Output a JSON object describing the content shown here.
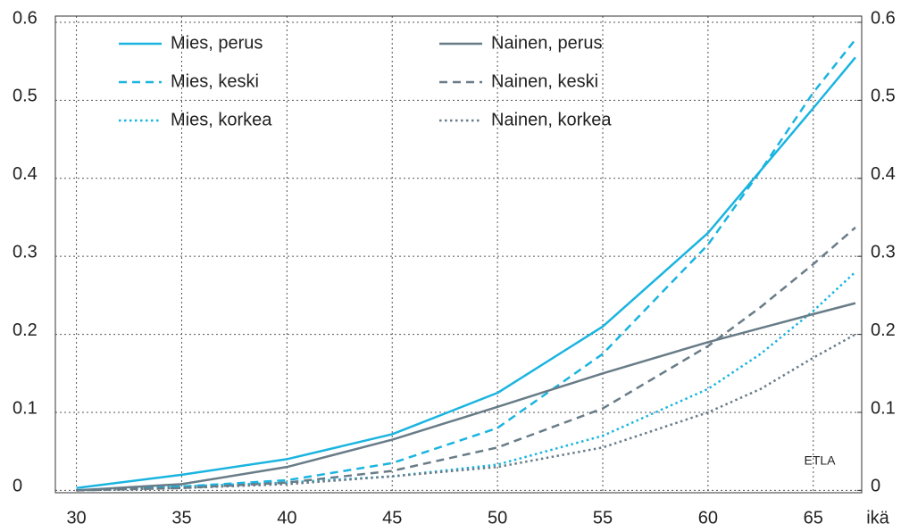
{
  "chart_data": {
    "type": "line",
    "x": [
      30,
      35,
      40,
      45,
      50,
      55,
      60,
      62.5,
      65,
      67
    ],
    "series": [
      {
        "name": "Mies, perus",
        "color": "#1ab4e0",
        "dash": "solid",
        "values": [
          0.003,
          0.02,
          0.04,
          0.072,
          0.125,
          0.21,
          0.33,
          0.41,
          0.49,
          0.555
        ]
      },
      {
        "name": "Mies, keski",
        "color": "#1ab4e0",
        "dash": "dashed",
        "values": [
          0,
          0.005,
          0.013,
          0.035,
          0.08,
          0.175,
          0.315,
          0.41,
          0.51,
          0.578
        ]
      },
      {
        "name": "Mies, korkea",
        "color": "#1ab4e0",
        "dash": "dotted",
        "values": [
          0,
          0.005,
          0.01,
          0.018,
          0.033,
          0.07,
          0.13,
          0.175,
          0.23,
          0.28
        ]
      },
      {
        "name": "Nainen, perus",
        "color": "#687c88",
        "dash": "solid",
        "values": [
          0,
          0.008,
          0.03,
          0.065,
          0.107,
          0.15,
          0.19,
          0.208,
          0.226,
          0.24
        ]
      },
      {
        "name": "Nainen, keski",
        "color": "#687c88",
        "dash": "dashed",
        "values": [
          0,
          0.003,
          0.01,
          0.025,
          0.055,
          0.105,
          0.185,
          0.235,
          0.29,
          0.337
        ]
      },
      {
        "name": "Nainen, korkea",
        "color": "#687c88",
        "dash": "dotted",
        "values": [
          0,
          0.003,
          0.008,
          0.018,
          0.03,
          0.055,
          0.1,
          0.13,
          0.17,
          0.2
        ]
      }
    ],
    "xlabel": "ikä",
    "annotation": "ETLA",
    "xlim": [
      29,
      67.3
    ],
    "xticks": [
      30,
      35,
      40,
      45,
      50,
      55,
      60,
      65
    ],
    "ylim": [
      -0.003,
      0.608
    ],
    "yticks": [
      0,
      0.1,
      0.2,
      0.3,
      0.4,
      0.5,
      0.6
    ],
    "y2lim": [
      -0.003,
      0.608
    ],
    "y2ticks": [
      0,
      0.1,
      0.2,
      0.3,
      0.4,
      0.5,
      0.6
    ],
    "grid": true,
    "legend": "top-left"
  }
}
